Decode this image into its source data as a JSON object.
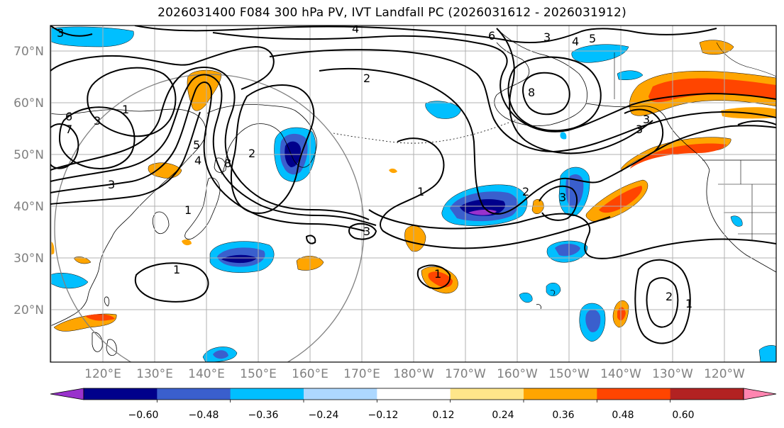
{
  "title": "2026031400 F084 300 hPa PV, IVT Landfall PC (2026031612 - 2026031912)",
  "lat_labels": [
    "70°N",
    "60°N",
    "50°N",
    "40°N",
    "30°N",
    "20°N"
  ],
  "lon_labels": [
    "120°E",
    "130°E",
    "140°E",
    "150°E",
    "160°E",
    "170°E",
    "180°W",
    "170°W",
    "160°W",
    "150°W",
    "140°W",
    "130°W",
    "120°W"
  ],
  "colorbar": {
    "colors": [
      "#9932cc",
      "#00008b",
      "#3a5fcd",
      "#00bfff",
      "#add8ff",
      "#ffffff",
      "#ffe68a",
      "#ffa500",
      "#ff4500",
      "#b22222",
      "#ff85b0"
    ],
    "tick_labels": [
      "−0.60",
      "−0.48",
      "−0.36",
      "−0.24",
      "−0.12",
      "0.12",
      "0.24",
      "0.36",
      "0.48",
      "0.60"
    ]
  },
  "contour_labels": [
    "4",
    "6",
    "3",
    "4",
    "5",
    "2",
    "8",
    "1",
    "6",
    "7",
    "3",
    "5",
    "4",
    "8",
    "3",
    "2",
    "1",
    "3",
    "2",
    "3",
    "1",
    "1",
    "3",
    "3",
    "2",
    "1",
    "3",
    "1"
  ]
}
